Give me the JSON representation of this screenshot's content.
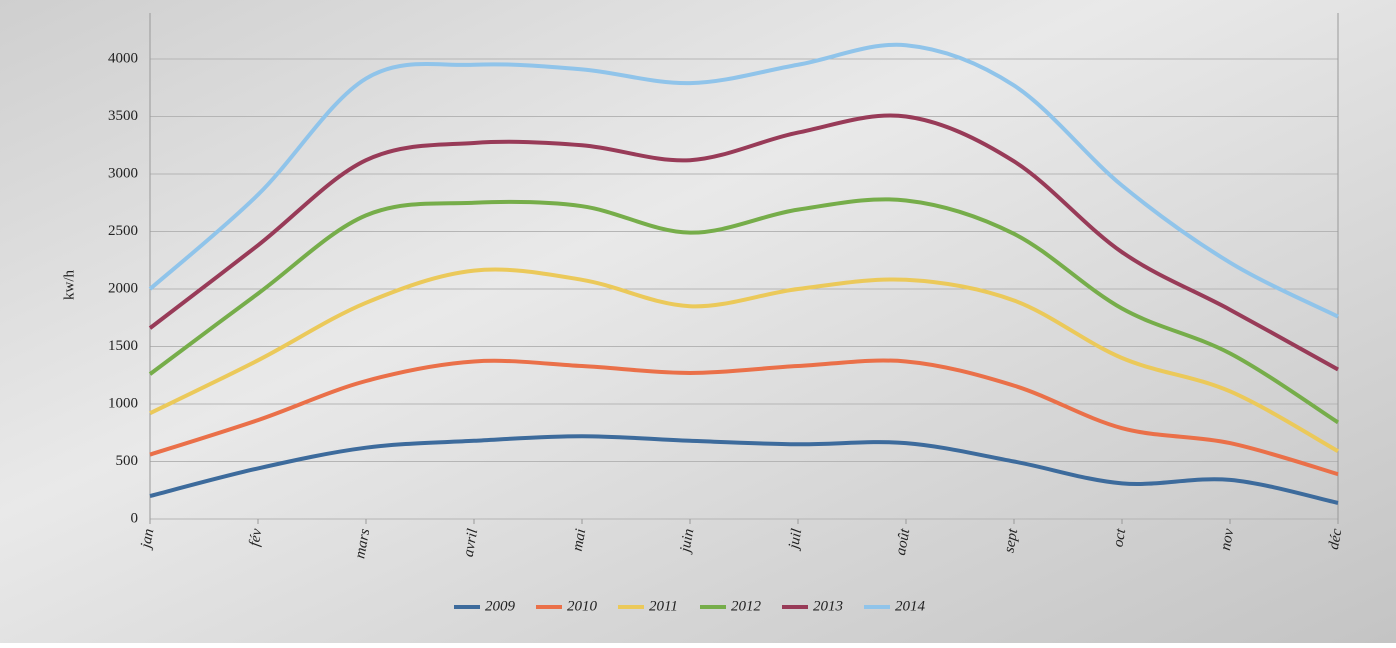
{
  "chart_data": {
    "type": "line",
    "y_label": "kw/h",
    "categories": [
      "jan",
      "fév",
      "mars",
      "avril",
      "mai",
      "juin",
      "juil",
      "août",
      "sept",
      "oct",
      "nov",
      "déc"
    ],
    "ylim": [
      0,
      4400
    ],
    "yticks": [
      0,
      500,
      1000,
      1500,
      2000,
      2500,
      3000,
      3500,
      4000
    ],
    "grid": true,
    "legend": "bottom",
    "series": [
      {
        "name": "2009",
        "color": "#3d6b9c",
        "values": [
          200,
          440,
          620,
          680,
          720,
          680,
          650,
          660,
          500,
          310,
          340,
          140
        ]
      },
      {
        "name": "2010",
        "color": "#ea7049",
        "values": [
          560,
          860,
          1200,
          1370,
          1330,
          1270,
          1330,
          1370,
          1160,
          790,
          660,
          390
        ]
      },
      {
        "name": "2011",
        "color": "#ebc95a",
        "values": [
          920,
          1380,
          1880,
          2160,
          2080,
          1850,
          2000,
          2080,
          1900,
          1400,
          1110,
          590
        ]
      },
      {
        "name": "2012",
        "color": "#76ad4a",
        "values": [
          1260,
          1960,
          2640,
          2750,
          2720,
          2490,
          2690,
          2770,
          2480,
          1830,
          1440,
          840
        ]
      },
      {
        "name": "2013",
        "color": "#983b58",
        "values": [
          1660,
          2380,
          3120,
          3270,
          3250,
          3120,
          3360,
          3500,
          3110,
          2320,
          1820,
          1300
        ]
      },
      {
        "name": "2014",
        "color": "#90c4ea",
        "values": [
          2000,
          2820,
          3830,
          3950,
          3910,
          3790,
          3950,
          4120,
          3770,
          2900,
          2230,
          1760
        ]
      }
    ]
  }
}
